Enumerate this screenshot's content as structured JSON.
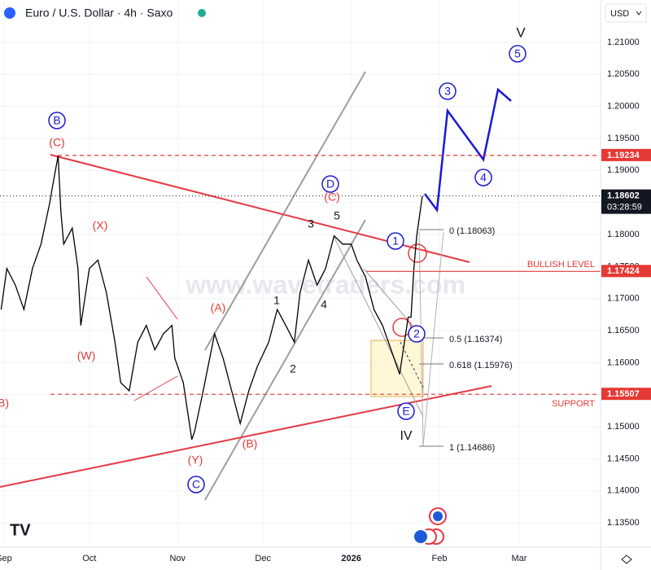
{
  "chart_data": {
    "type": "line",
    "title": "Euro / U.S. Dollar · 4h · Saxo",
    "currency": "USD",
    "watermark": "www.wavetraders.com",
    "color": "#000000",
    "x": [
      -1,
      1,
      4,
      7,
      10,
      13,
      16,
      17,
      19,
      20,
      21,
      24,
      26,
      27,
      30,
      33,
      36,
      39,
      41,
      44,
      47,
      50,
      53,
      56,
      59,
      60,
      63,
      66,
      67,
      70,
      74,
      77,
      80,
      83,
      86,
      89,
      93,
      96,
      99,
      102,
      104,
      107,
      110,
      113,
      116,
      119,
      122,
      124,
      127,
      130,
      133,
      136,
      139,
      142,
      143,
      144,
      145,
      147
    ],
    "values": [
      1.1683,
      1.1747,
      1.1721,
      1.1683,
      1.1747,
      1.1785,
      1.1848,
      1.1874,
      1.1923,
      1.1836,
      1.1785,
      1.181,
      1.1747,
      1.1658,
      1.1747,
      1.176,
      1.1709,
      1.1632,
      1.1569,
      1.1556,
      1.1632,
      1.1658,
      1.162,
      1.1645,
      1.1658,
      1.1607,
      1.1569,
      1.148,
      1.1493,
      1.1556,
      1.1645,
      1.1607,
      1.1556,
      1.1505,
      1.1556,
      1.1594,
      1.1632,
      1.1683,
      1.1658,
      1.1632,
      1.1709,
      1.176,
      1.1721,
      1.1747,
      1.1798,
      1.1785,
      1.1785,
      1.176,
      1.1734,
      1.1683,
      1.1658,
      1.162,
      1.1582,
      1.1671,
      1.1671,
      1.1747,
      1.1798,
      1.186
    ],
    "xlim": [
      -1.4,
      209.6
    ],
    "ylim": [
      1.1312,
      1.2166
    ],
    "xticks": [
      {
        "value": 0,
        "label": "Sep"
      },
      {
        "value": 30,
        "label": "Oct"
      },
      {
        "value": 61,
        "label": "Nov"
      },
      {
        "value": 91,
        "label": "Dec"
      },
      {
        "value": 122,
        "label": "2026"
      },
      {
        "value": 153,
        "label": "Feb"
      },
      {
        "value": 181,
        "label": "Mar"
      }
    ],
    "yticks": [
      {
        "value": 1.135,
        "label": "1.13500"
      },
      {
        "value": 1.14,
        "label": "1.14000"
      },
      {
        "value": 1.145,
        "label": "1.14500"
      },
      {
        "value": 1.15,
        "label": "1.15000"
      },
      {
        "value": 1.155,
        "label": "1.15500"
      },
      {
        "value": 1.16,
        "label": "1.16000"
      },
      {
        "value": 1.165,
        "label": "1.16500"
      },
      {
        "value": 1.17,
        "label": "1.17000"
      },
      {
        "value": 1.175,
        "label": "1.17500"
      },
      {
        "value": 1.18,
        "label": "1.18000"
      },
      {
        "value": 1.185,
        "label": "1.18500"
      },
      {
        "value": 1.19,
        "label": "1.19000"
      },
      {
        "value": 1.195,
        "label": "1.19500"
      },
      {
        "value": 1.2,
        "label": "1.20000"
      },
      {
        "value": 1.205,
        "label": "1.20500"
      },
      {
        "value": 1.21,
        "label": "1.21000"
      }
    ],
    "grid": true,
    "price_tags": [
      {
        "value": 1.19234,
        "color": "#e53935",
        "line": "dashed"
      },
      {
        "value": 1.18602,
        "color": "#131722",
        "line": "dotted",
        "countdown": "03:28:59"
      },
      {
        "value": 1.17424,
        "color": "#e53935",
        "line": "solid"
      },
      {
        "value": 1.15507,
        "color": "#e53935",
        "line": "dashed"
      }
    ],
    "annotations": [
      {
        "text": "B",
        "color": "#1a1ad6"
      },
      {
        "text": "(C)",
        "color": "#e53935"
      },
      {
        "text": "(X)",
        "color": "#e53935"
      },
      {
        "text": "(W)",
        "color": "#e53935"
      },
      {
        "text": "(A)",
        "color": "#e53935"
      },
      {
        "text": "(Y)",
        "color": "#e53935"
      },
      {
        "text": "C",
        "color": "#1a1ad6"
      },
      {
        "text": "(B)",
        "color": "#e53935"
      },
      {
        "text": "1",
        "color": "#131722"
      },
      {
        "text": "2",
        "color": "#131722"
      },
      {
        "text": "3",
        "color": "#131722"
      },
      {
        "text": "4",
        "color": "#131722"
      },
      {
        "text": "5",
        "color": "#131722"
      },
      {
        "text": "D",
        "color": "#1a1ad6"
      },
      {
        "text": "(C)",
        "color": "#e53935"
      },
      {
        "text": "1",
        "color": "#1a1ad6"
      },
      {
        "text": "2",
        "color": "#1a1ad6"
      },
      {
        "text": "E",
        "color": "#1a1ad6"
      },
      {
        "text": "IV",
        "color": "#131722"
      },
      {
        "text": "3",
        "color": "#1a1ad6"
      },
      {
        "text": "4",
        "color": "#1a1ad6"
      },
      {
        "text": "5",
        "color": "#1a1ad6"
      },
      {
        "text": "V",
        "color": "#131722"
      },
      {
        "text": "B)",
        "color": "#e53935"
      },
      {
        "text": "0 (1.18063)",
        "color": "#131722"
      },
      {
        "text": "0.5 (1.16374)",
        "color": "#131722"
      },
      {
        "text": "0.618 (1.15976)",
        "color": "#131722"
      },
      {
        "text": "1 (1.14686)",
        "color": "#131722"
      },
      {
        "text": "BULLISH LEVEL",
        "color": "#e53935"
      },
      {
        "text": "SUPPORT",
        "color": "#e53935"
      }
    ]
  }
}
